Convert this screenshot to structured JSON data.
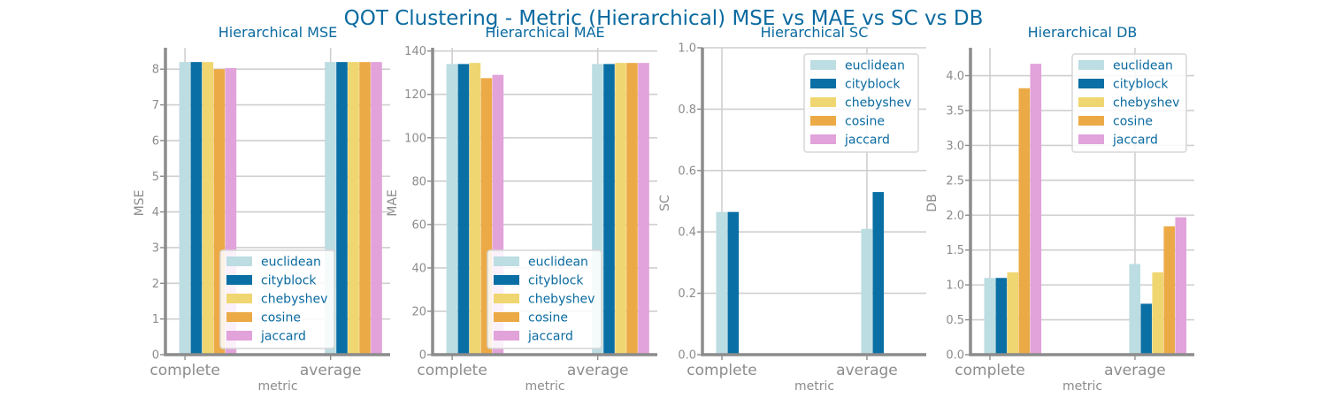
{
  "figure": {
    "title": "QOT Clustering - Metric (Hierarchical) MSE vs MAE vs SC vs DB",
    "title_color": "#0a6aa0",
    "text_color": "#0a6aa0",
    "muted_color": "#8c8c8c",
    "grid_color": "#cfcfcf",
    "spine_color": "#8c8c8c"
  },
  "chart_data": [
    {
      "type": "bar",
      "title": "Hierarchical MSE",
      "xlabel": "metric",
      "ylabel": "MSE",
      "categories": [
        "complete",
        "average"
      ],
      "ylim": [
        0,
        8.6
      ],
      "yticks": [
        0,
        1,
        2,
        3,
        4,
        5,
        6,
        7,
        8
      ],
      "ytick_labels": [
        "0",
        "1",
        "2",
        "3",
        "4",
        "5",
        "6",
        "7",
        "8"
      ],
      "grid": true,
      "legend_position": "lower-center",
      "series": [
        {
          "name": "euclidean",
          "color": "#bcdde2",
          "values": [
            8.2,
            8.2
          ]
        },
        {
          "name": "cityblock",
          "color": "#0a6fa4",
          "values": [
            8.2,
            8.2
          ]
        },
        {
          "name": "chebyshev",
          "color": "#f0d670",
          "values": [
            8.2,
            8.2
          ]
        },
        {
          "name": "cosine",
          "color": "#ecaa47",
          "values": [
            8.0,
            8.2
          ]
        },
        {
          "name": "jaccard",
          "color": "#e2a2da",
          "values": [
            8.03,
            8.2
          ]
        }
      ]
    },
    {
      "type": "bar",
      "title": "Hierarchical MAE",
      "xlabel": "metric",
      "ylabel": "MAE",
      "categories": [
        "complete",
        "average"
      ],
      "ylim": [
        0,
        141.5
      ],
      "yticks": [
        0,
        20,
        40,
        60,
        80,
        100,
        120,
        140
      ],
      "ytick_labels": [
        "0",
        "20",
        "40",
        "60",
        "80",
        "100",
        "120",
        "140"
      ],
      "grid": true,
      "legend_position": "lower-center",
      "series": [
        {
          "name": "euclidean",
          "color": "#bcdde2",
          "values": [
            134,
            134
          ]
        },
        {
          "name": "cityblock",
          "color": "#0a6fa4",
          "values": [
            134,
            134
          ]
        },
        {
          "name": "chebyshev",
          "color": "#f0d670",
          "values": [
            134.5,
            134.5
          ]
        },
        {
          "name": "cosine",
          "color": "#ecaa47",
          "values": [
            127.5,
            134.5
          ]
        },
        {
          "name": "jaccard",
          "color": "#e2a2da",
          "values": [
            129,
            134.5
          ]
        }
      ]
    },
    {
      "type": "bar",
      "title": "Hierarchical SC",
      "xlabel": "metric",
      "ylabel": "SC",
      "categories": [
        "complete",
        "average"
      ],
      "ylim": [
        0,
        1.0
      ],
      "yticks": [
        0,
        0.2,
        0.4,
        0.6,
        0.8,
        1.0
      ],
      "ytick_labels": [
        "0.0",
        "0.2",
        "0.4",
        "0.6",
        "0.8",
        "1.0"
      ],
      "grid": true,
      "legend_position": "top-right",
      "series": [
        {
          "name": "euclidean",
          "color": "#bcdde2",
          "values": [
            0.465,
            0.41
          ]
        },
        {
          "name": "cityblock",
          "color": "#0a6fa4",
          "values": [
            0.465,
            0.53
          ]
        },
        {
          "name": "chebyshev",
          "color": "#f0d670",
          "values": [
            0,
            0
          ]
        },
        {
          "name": "cosine",
          "color": "#ecaa47",
          "values": [
            0,
            0
          ]
        },
        {
          "name": "jaccard",
          "color": "#e2a2da",
          "values": [
            0,
            0
          ]
        }
      ]
    },
    {
      "type": "bar",
      "title": "Hierarchical DB",
      "xlabel": "metric",
      "ylabel": "DB",
      "categories": [
        "complete",
        "average"
      ],
      "ylim": [
        0,
        4.4
      ],
      "yticks": [
        0,
        0.5,
        1.0,
        1.5,
        2.0,
        2.5,
        3.0,
        3.5,
        4.0
      ],
      "ytick_labels": [
        "0.0",
        "0.5",
        "1.0",
        "1.5",
        "2.0",
        "2.5",
        "3.0",
        "3.5",
        "4.0"
      ],
      "grid": true,
      "legend_position": "top-right",
      "series": [
        {
          "name": "euclidean",
          "color": "#bcdde2",
          "values": [
            1.1,
            1.3
          ]
        },
        {
          "name": "cityblock",
          "color": "#0a6fa4",
          "values": [
            1.1,
            0.73
          ]
        },
        {
          "name": "chebyshev",
          "color": "#f0d670",
          "values": [
            1.18,
            1.18
          ]
        },
        {
          "name": "cosine",
          "color": "#ecaa47",
          "values": [
            3.82,
            1.84
          ]
        },
        {
          "name": "jaccard",
          "color": "#e2a2da",
          "values": [
            4.17,
            1.97
          ]
        }
      ]
    }
  ]
}
